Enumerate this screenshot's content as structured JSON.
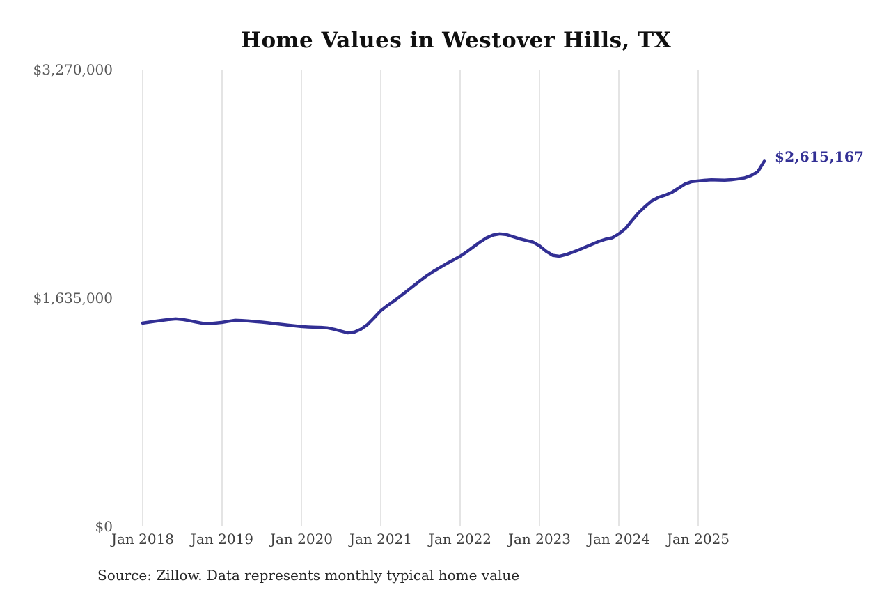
{
  "chart_data": {
    "type": "line",
    "title": "Home Values in Westover Hills, TX",
    "source_note": "Source: Zillow. Data represents monthly typical home value",
    "series_name": "Monthly typical home value",
    "ylim": [
      0,
      3270000
    ],
    "grid": "vertical-yearly",
    "legend": "none",
    "line_color": "#322f94",
    "grid_color": "#c9c9c9",
    "last_value_label": "$2,615,167",
    "last_value": 2615167,
    "y_ticks": [
      {
        "value": 0,
        "label": "$0"
      },
      {
        "value": 1635000,
        "label": "$1,635,000"
      },
      {
        "value": 3270000,
        "label": "$3,270,000"
      }
    ],
    "x_ticks": [
      "Jan 2018",
      "Jan 2019",
      "Jan 2020",
      "Jan 2021",
      "Jan 2022",
      "Jan 2023",
      "Jan 2024",
      "Jan 2025"
    ],
    "x_months": [
      "2018-01",
      "2018-02",
      "2018-03",
      "2018-04",
      "2018-05",
      "2018-06",
      "2018-07",
      "2018-08",
      "2018-09",
      "2018-10",
      "2018-11",
      "2018-12",
      "2019-01",
      "2019-02",
      "2019-03",
      "2019-04",
      "2019-05",
      "2019-06",
      "2019-07",
      "2019-08",
      "2019-09",
      "2019-10",
      "2019-11",
      "2019-12",
      "2020-01",
      "2020-02",
      "2020-03",
      "2020-04",
      "2020-05",
      "2020-06",
      "2020-07",
      "2020-08",
      "2020-09",
      "2020-10",
      "2020-11",
      "2020-12",
      "2021-01",
      "2021-02",
      "2021-03",
      "2021-04",
      "2021-05",
      "2021-06",
      "2021-07",
      "2021-08",
      "2021-09",
      "2021-10",
      "2021-11",
      "2021-12",
      "2022-01",
      "2022-02",
      "2022-03",
      "2022-04",
      "2022-05",
      "2022-06",
      "2022-07",
      "2022-08",
      "2022-09",
      "2022-10",
      "2022-11",
      "2022-12",
      "2023-01",
      "2023-02",
      "2023-03",
      "2023-04",
      "2023-05",
      "2023-06",
      "2023-07",
      "2023-08",
      "2023-09",
      "2023-10",
      "2023-11",
      "2023-12",
      "2024-01",
      "2024-02",
      "2024-03",
      "2024-04",
      "2024-05",
      "2024-06",
      "2024-07",
      "2024-08",
      "2024-09",
      "2024-10",
      "2024-11",
      "2024-12",
      "2025-01",
      "2025-02",
      "2025-03",
      "2025-04",
      "2025-05",
      "2025-06",
      "2025-07",
      "2025-08",
      "2025-09",
      "2025-10",
      "2025-11"
    ],
    "values": [
      1456000,
      1463000,
      1470000,
      1476000,
      1482000,
      1486000,
      1482000,
      1474000,
      1464000,
      1455000,
      1452000,
      1456000,
      1461000,
      1469000,
      1476000,
      1474000,
      1471000,
      1467000,
      1463000,
      1458000,
      1452000,
      1447000,
      1441000,
      1436000,
      1431000,
      1428000,
      1426000,
      1425000,
      1421000,
      1411000,
      1398000,
      1386000,
      1391000,
      1412000,
      1446000,
      1494000,
      1545000,
      1581000,
      1614000,
      1650000,
      1687000,
      1724000,
      1761000,
      1796000,
      1827000,
      1855000,
      1882000,
      1908000,
      1934000,
      1966000,
      2001000,
      2036000,
      2066000,
      2086000,
      2094000,
      2089000,
      2074000,
      2059000,
      2047000,
      2036000,
      2009000,
      1970000,
      1941000,
      1934000,
      1946000,
      1963000,
      1981000,
      2001000,
      2021000,
      2041000,
      2056000,
      2066000,
      2094000,
      2132000,
      2191000,
      2246000,
      2291000,
      2331000,
      2356000,
      2371000,
      2391000,
      2421000,
      2451000,
      2468000,
      2473000,
      2478000,
      2481000,
      2480000,
      2479000,
      2482000,
      2488000,
      2495000,
      2512000,
      2538000,
      2615167
    ]
  }
}
